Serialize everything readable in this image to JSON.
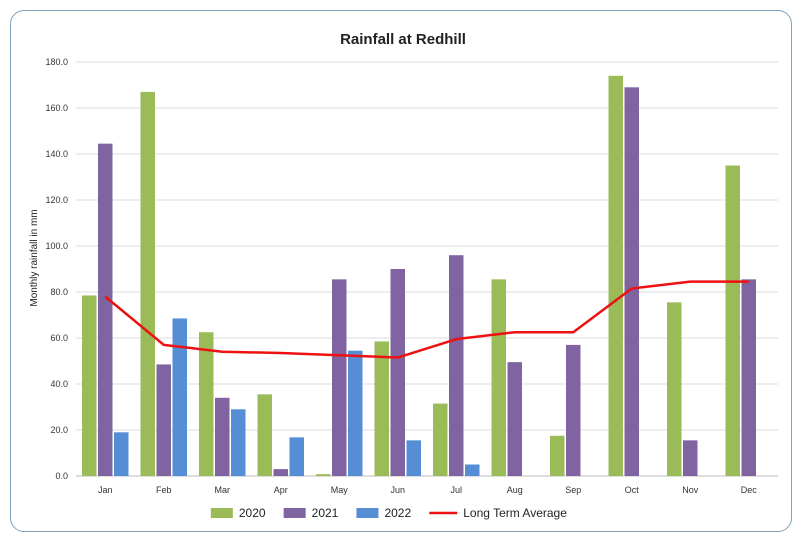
{
  "chart_data": {
    "type": "bar",
    "title": "Rainfall at Redhill",
    "xlabel": "",
    "ylabel": "Monthly rainfall in mm",
    "ylim": [
      0,
      180
    ],
    "yticks": [
      "0.0",
      "20.0",
      "40.0",
      "60.0",
      "80.0",
      "100.0",
      "120.0",
      "140.0",
      "160.0",
      "180.0"
    ],
    "grid": "horizontal",
    "legend_position": "bottom",
    "categories": [
      "Jan",
      "Feb",
      "Mar",
      "Apr",
      "May",
      "Jun",
      "Jul",
      "Aug",
      "Sep",
      "Oct",
      "Nov",
      "Dec"
    ],
    "series": [
      {
        "name": "2020",
        "kind": "bar",
        "color": "#9bbb59",
        "values": [
          78.5,
          167.0,
          62.5,
          35.5,
          0.8,
          58.5,
          31.5,
          85.5,
          17.5,
          174.0,
          75.5,
          135.0
        ]
      },
      {
        "name": "2021",
        "kind": "bar",
        "color": "#8064a2",
        "values": [
          144.5,
          48.5,
          34.0,
          3.0,
          85.5,
          90.0,
          96.0,
          49.5,
          57.0,
          169.0,
          15.5,
          85.5
        ]
      },
      {
        "name": "2022",
        "kind": "bar",
        "color": "#558ed5",
        "values": [
          19.0,
          68.5,
          29.0,
          16.8,
          54.5,
          15.5,
          5.0,
          null,
          null,
          null,
          null,
          null
        ]
      },
      {
        "name": "Long Term Average",
        "kind": "line",
        "color": "#ee1111",
        "values": [
          78.0,
          57.0,
          54.0,
          53.5,
          52.5,
          51.5,
          59.5,
          62.5,
          62.5,
          81.5,
          84.5,
          84.5
        ]
      }
    ]
  }
}
